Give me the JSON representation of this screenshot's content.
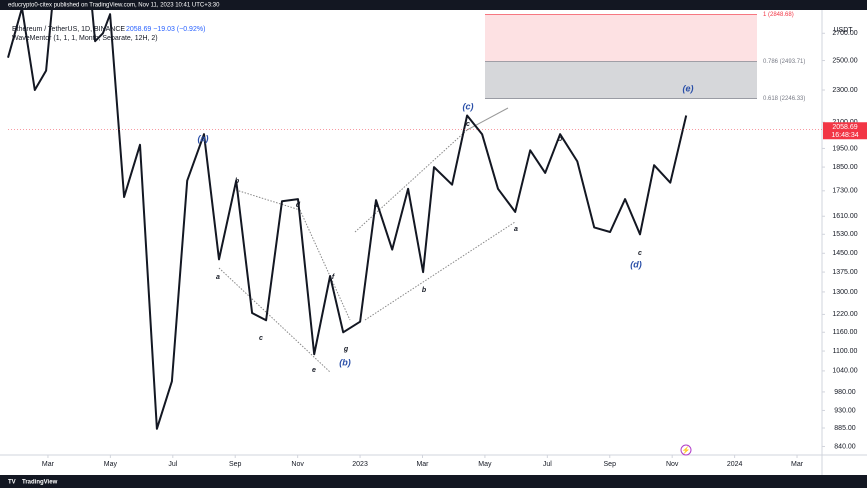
{
  "header": {
    "publisher": "educrypto0-citex published on TradingView.com, Nov 11, 2023 10:41 UTC+3:30"
  },
  "legend": {
    "symbol": "Ethereum / TetherUS, 1D, BINANCE",
    "quote": "2058.69 −19.03 (−0.92%)",
    "indicator": "WaveMentor (1, 1, 1, Month, Separate, 12H, 2)"
  },
  "currency": "USDT",
  "last_price": 2058.69,
  "countdown": "16:48:34",
  "footer": {
    "brand": "TradingView"
  },
  "chart_data": {
    "type": "line",
    "log_scale": true,
    "grid": false,
    "x": [
      0.72,
      1.17,
      1.58,
      1.94,
      2.13,
      3.41,
      3.51,
      3.76,
      3.99,
      4.44,
      4.95,
      5.49,
      5.97,
      6.46,
      7.0,
      7.48,
      8.03,
      8.54,
      8.99,
      9.5,
      10.01,
      10.53,
      11.04,
      11.46,
      12.0,
      12.51,
      13.03,
      13.54,
      14.02,
      14.37,
      14.95,
      15.43,
      15.91,
      16.42,
      16.97,
      17.45,
      17.93,
      18.41,
      18.96,
      19.5,
      20.01,
      20.49,
      20.97,
      21.42,
      21.94,
      22.45
    ],
    "series": [
      {
        "name": "Ethereum / TetherUS",
        "color": "#131722",
        "values": [
          2520,
          2900,
          2300,
          2430,
          2900,
          2900,
          2640,
          2700,
          2850,
          1700,
          1970,
          883,
          1010,
          1780,
          2030,
          1425,
          1780,
          1225,
          1200,
          1680,
          1690,
          1090,
          1360,
          1160,
          1195,
          1685,
          1465,
          1740,
          1375,
          1850,
          1760,
          2140,
          2030,
          1740,
          1630,
          1940,
          1820,
          2030,
          1880,
          1560,
          1540,
          1690,
          1530,
          1860,
          1770,
          2140
        ]
      }
    ],
    "xlim": [
      0.72,
      26.8
    ],
    "xticks": [
      {
        "value": 2,
        "label": "Mar"
      },
      {
        "value": 4,
        "label": "May"
      },
      {
        "value": 6,
        "label": "Jul"
      },
      {
        "value": 8,
        "label": "Sep"
      },
      {
        "value": 10,
        "label": "Nov"
      },
      {
        "value": 12,
        "label": "2023"
      },
      {
        "value": 14,
        "label": "Mar"
      },
      {
        "value": 16,
        "label": "May"
      },
      {
        "value": 18,
        "label": "Jul"
      },
      {
        "value": 20,
        "label": "Sep"
      },
      {
        "value": 22,
        "label": "Nov"
      },
      {
        "value": 24,
        "label": "2024"
      },
      {
        "value": 26,
        "label": "Mar"
      }
    ],
    "ylim": [
      820,
      2900
    ],
    "yticks": [
      {
        "value": 840,
        "label": "840.00"
      },
      {
        "value": 885,
        "label": "885.00"
      },
      {
        "value": 930,
        "label": "930.00"
      },
      {
        "value": 980,
        "label": "980.00"
      },
      {
        "value": 1040,
        "label": "1040.00"
      },
      {
        "value": 1100,
        "label": "1100.00"
      },
      {
        "value": 1160,
        "label": "1160.00"
      },
      {
        "value": 1220,
        "label": "1220.00"
      },
      {
        "value": 1300,
        "label": "1300.00"
      },
      {
        "value": 1375,
        "label": "1375.00"
      },
      {
        "value": 1450,
        "label": "1450.00"
      },
      {
        "value": 1530,
        "label": "1530.00"
      },
      {
        "value": 1610,
        "label": "1610.00"
      },
      {
        "value": 1730,
        "label": "1730.00"
      },
      {
        "value": 1850,
        "label": "1850.00"
      },
      {
        "value": 1950,
        "label": "1950.00"
      },
      {
        "value": 2100,
        "label": "2100.00"
      },
      {
        "value": 2300,
        "label": "2300.00"
      },
      {
        "value": 2500,
        "label": "2500.00"
      },
      {
        "value": 2700,
        "label": "2700.00"
      }
    ],
    "fib_levels": [
      {
        "value": 2848.68,
        "label": "1 (2848.68)"
      },
      {
        "value": 2493.71,
        "label": "0.786 (2493.71)"
      },
      {
        "value": 2246.33,
        "label": "0.618 (2246.33)"
      }
    ],
    "annotations": [
      "(a)",
      "b",
      "a",
      "c",
      "d",
      "e",
      "f",
      "g",
      "(b)",
      "a",
      "b",
      "c",
      "(c)",
      "a",
      "b",
      "c",
      "(d)",
      "(e)"
    ]
  }
}
